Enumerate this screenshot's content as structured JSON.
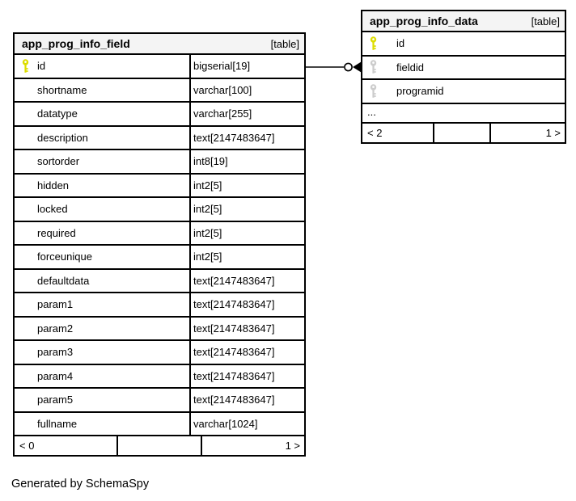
{
  "generated_by": "Generated by SchemaSpy",
  "colors": {
    "primary_key": "#dddd00",
    "foreign_key": "#cccccc",
    "header_bg": "#f4f4f4",
    "border": "#000000",
    "connector_line": "#444444"
  },
  "relationship": {
    "from_table": "app_prog_info_field",
    "from_column": "id",
    "to_table": "app_prog_info_data",
    "to_column": "fieldid",
    "endpoint_style": "circle-and-filled-arrow"
  },
  "tables": [
    {
      "name": "app_prog_info_field",
      "badge": "[table]",
      "columns": [
        {
          "name": "id",
          "type": "bigserial[19]",
          "key": "primary"
        },
        {
          "name": "shortname",
          "type": "varchar[100]",
          "key": null
        },
        {
          "name": "datatype",
          "type": "varchar[255]",
          "key": null
        },
        {
          "name": "description",
          "type": "text[2147483647]",
          "key": null
        },
        {
          "name": "sortorder",
          "type": "int8[19]",
          "key": null
        },
        {
          "name": "hidden",
          "type": "int2[5]",
          "key": null
        },
        {
          "name": "locked",
          "type": "int2[5]",
          "key": null
        },
        {
          "name": "required",
          "type": "int2[5]",
          "key": null
        },
        {
          "name": "forceunique",
          "type": "int2[5]",
          "key": null
        },
        {
          "name": "defaultdata",
          "type": "text[2147483647]",
          "key": null
        },
        {
          "name": "param1",
          "type": "text[2147483647]",
          "key": null
        },
        {
          "name": "param2",
          "type": "text[2147483647]",
          "key": null
        },
        {
          "name": "param3",
          "type": "text[2147483647]",
          "key": null
        },
        {
          "name": "param4",
          "type": "text[2147483647]",
          "key": null
        },
        {
          "name": "param5",
          "type": "text[2147483647]",
          "key": null
        },
        {
          "name": "fullname",
          "type": "varchar[1024]",
          "key": null
        }
      ],
      "footer": {
        "left": "< 0",
        "middle": "",
        "right": "1 >"
      }
    },
    {
      "name": "app_prog_info_data",
      "badge": "[table]",
      "columns": [
        {
          "name": "id",
          "key": "primary"
        },
        {
          "name": "fieldid",
          "key": "foreign"
        },
        {
          "name": "programid",
          "key": "foreign"
        },
        {
          "name": "...",
          "key": null,
          "ellipsis": true
        }
      ],
      "footer": {
        "left": "< 2",
        "middle": "",
        "right": "1 >"
      }
    }
  ]
}
